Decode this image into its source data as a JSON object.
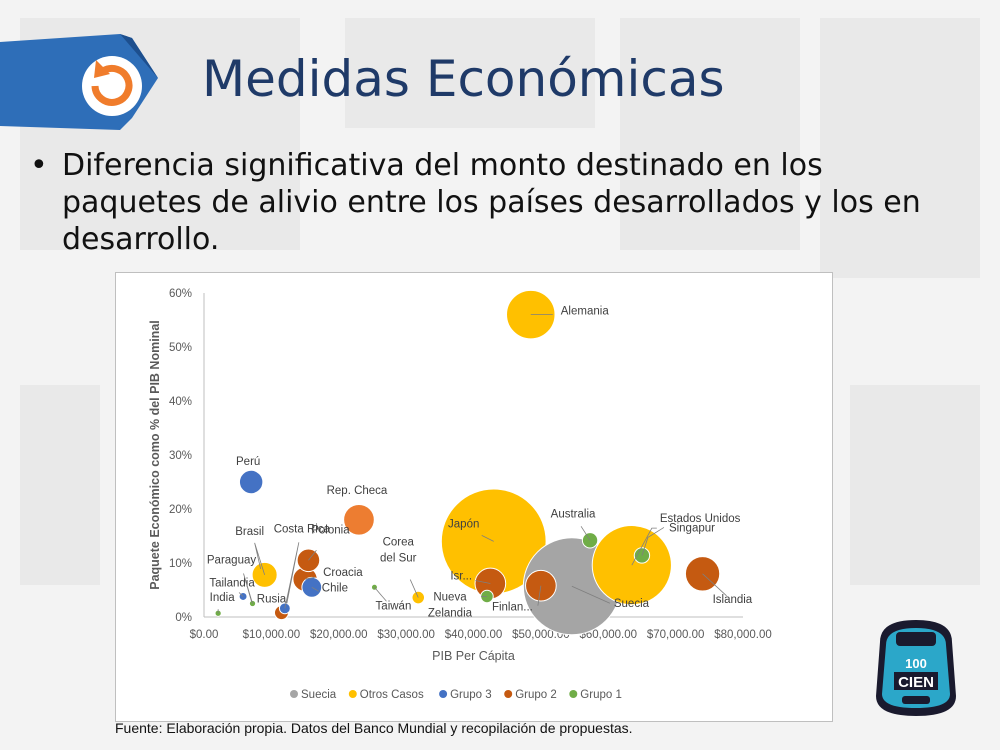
{
  "slide": {
    "title": "Medidas Económicas",
    "bullet": "Diferencia significativa del monto destinado en los paquetes de alivio entre los países desarrollados y los en desarrollo.",
    "source": "Fuente: Elaboración propia. Datos del Banco Mundial y recopilación de propuestas.",
    "logo_text": "CIEN",
    "logo_top_text": "100",
    "header_icon": "refresh-arrow-icon"
  },
  "colors": {
    "title": "#1f3a68",
    "banner": "#2e6eb8",
    "icon_orange": "#f07c2b",
    "Suecia": "#a5a5a5",
    "Otros Casos": "#ffc000",
    "Grupo 3": "#4472c4",
    "Grupo 2": "#c55a11",
    "Grupo 1": "#70ad47",
    "Rep. Checa": "#ed7d31"
  },
  "chart_data": {
    "type": "bubble",
    "title": "",
    "xlabel": "PIB Per Cápita",
    "ylabel": "Paquete Económico como % del PIB Nominal",
    "xlim": [
      0,
      80000
    ],
    "ylim": [
      0,
      60
    ],
    "x_ticks": [
      "$0.00",
      "$10,000.00",
      "$20,000.00",
      "$30,000.00",
      "$40,000.00",
      "$50,000.00",
      "$60,000.00",
      "$70,000.00",
      "$80,000.00"
    ],
    "y_ticks": [
      "0%",
      "10%",
      "20%",
      "30%",
      "40%",
      "50%",
      "60%"
    ],
    "grid": false,
    "legend_position": "bottom",
    "legend": [
      "Suecia",
      "Otros Casos",
      "Grupo 3",
      "Grupo 2",
      "Grupo 1"
    ],
    "points": [
      {
        "label": "Suecia",
        "series": "Suecia",
        "x": 54600,
        "y": 5.7,
        "size": 12
      },
      {
        "label": "Alemania",
        "series": "Otros Casos",
        "x": 48500,
        "y": 56,
        "size": 3
      },
      {
        "label": "Japón",
        "series": "Otros Casos",
        "x": 43000,
        "y": 14,
        "size": 14
      },
      {
        "label": "Estados Unidos",
        "series": "Otros Casos",
        "x": 63500,
        "y": 9.6,
        "size": 8
      },
      {
        "label": "Brasil",
        "series": "Otros Casos",
        "x": 9000,
        "y": 7.8,
        "size": 0.8
      },
      {
        "label": "Corea del Sur",
        "series": "Otros Casos",
        "x": 31800,
        "y": 3.6,
        "size": 0.2
      },
      {
        "label": "Perú",
        "series": "Grupo 3",
        "x": 7000,
        "y": 25,
        "size": 0.7
      },
      {
        "label": "Chile",
        "series": "Grupo 3",
        "x": 16000,
        "y": 5.5,
        "size": 0.5
      },
      {
        "label": "Costa Rica",
        "series": "Grupo 3",
        "x": 12000,
        "y": 1.6,
        "size": 0.15
      },
      {
        "label": "Tailandia",
        "series": "Grupo 3",
        "x": 5800,
        "y": 3.8,
        "size": 0.08
      },
      {
        "label": "Rep. Checa",
        "series": "Grupo 2",
        "x": 23000,
        "y": 18,
        "size": 1.2
      },
      {
        "label": "Polonia",
        "series": "Grupo 2",
        "x": 15500,
        "y": 10.5,
        "size": 0.65
      },
      {
        "label": "Croacia",
        "series": "Grupo 2",
        "x": 15000,
        "y": 7,
        "size": 0.75
      },
      {
        "label": "Rusia",
        "series": "Grupo 2",
        "x": 11500,
        "y": 0.8,
        "size": 0.25
      },
      {
        "label": "Isr...",
        "series": "Grupo 2",
        "x": 42500,
        "y": 6.2,
        "size": 1.2
      },
      {
        "label": "Finlan...",
        "series": "Grupo 2",
        "x": 50000,
        "y": 5.8,
        "size": 1.2
      },
      {
        "label": "Islandia",
        "series": "Grupo 2",
        "x": 74000,
        "y": 8,
        "size": 1.5
      },
      {
        "label": "Paraguay",
        "series": "Grupo 1",
        "x": 7200,
        "y": 2.5,
        "size": 0.05
      },
      {
        "label": "India",
        "series": "Grupo 1",
        "x": 2100,
        "y": 0.7,
        "size": 0.05
      },
      {
        "label": "Taiwán",
        "series": "Grupo 1",
        "x": 25300,
        "y": 5.5,
        "size": 0.03
      },
      {
        "label": "Nueva Zelandia",
        "series": "Grupo 1",
        "x": 42000,
        "y": 3.8,
        "size": 0.2
      },
      {
        "label": "Australia",
        "series": "Grupo 1",
        "x": 57300,
        "y": 14.2,
        "size": 0.3
      },
      {
        "label": "Singapur",
        "series": "Grupo 1",
        "x": 65000,
        "y": 11.4,
        "size": 0.3
      }
    ]
  }
}
